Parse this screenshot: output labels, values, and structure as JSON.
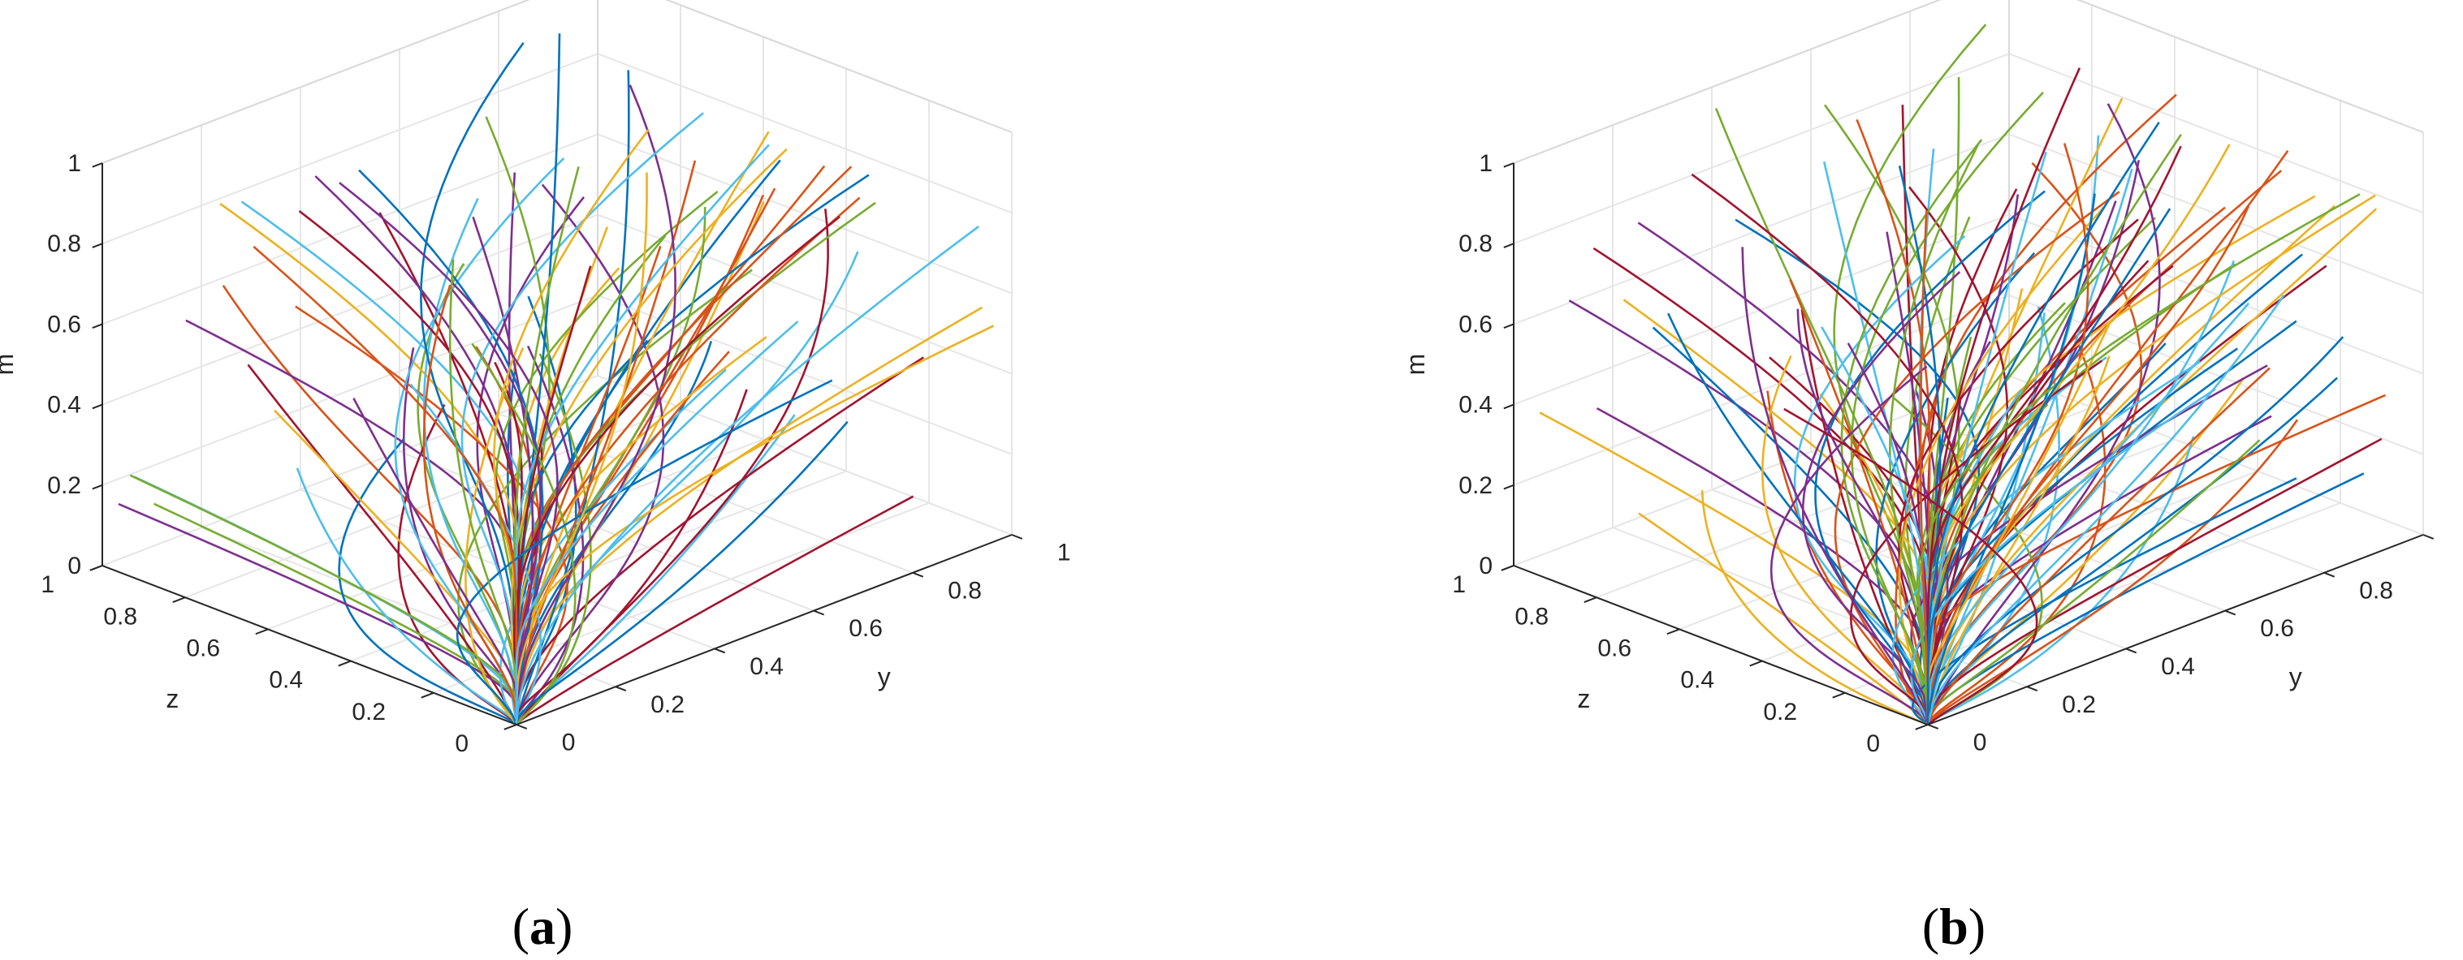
{
  "figure": {
    "panels": [
      {
        "caption_letter": "a",
        "caption_open": "(",
        "caption_close": ")",
        "axes": {
          "x_label": "y",
          "y_label": "z",
          "z_label": "m",
          "x_ticks": [
            "0",
            "0.2",
            "0.4",
            "0.6",
            "0.8",
            "1"
          ],
          "y_ticks": [
            "0",
            "0.2",
            "0.4",
            "0.6",
            "0.8",
            "1"
          ],
          "z_ticks": [
            "0",
            "0.2",
            "0.4",
            "0.6",
            "0.8",
            "1"
          ]
        }
      },
      {
        "caption_letter": "b",
        "caption_open": "(",
        "caption_close": ")",
        "axes": {
          "x_label": "y",
          "y_label": "z",
          "z_label": "m",
          "x_ticks": [
            "0",
            "0.2",
            "0.4",
            "0.6",
            "0.8",
            "1"
          ],
          "y_ticks": [
            "0",
            "0.2",
            "0.4",
            "0.6",
            "0.8",
            "1"
          ],
          "z_ticks": [
            "0",
            "0.2",
            "0.4",
            "0.6",
            "0.8",
            "1"
          ]
        }
      }
    ]
  },
  "chart_data": [
    {
      "type": "line",
      "projection": "3d",
      "panel": "a",
      "xlabel": "y",
      "ylabel": "z",
      "zlabel": "m",
      "xlim": [
        0,
        1
      ],
      "ylim": [
        0,
        1
      ],
      "zlim": [
        0,
        1
      ],
      "grid": true,
      "series_description_count": 90,
      "trajectory_model": "each trajectory ends at the origin (y=0, z=0, m=0) and begins at a point on the boundary of the unit cube (y=1 face, z=1 face, or m=1 top)",
      "colors": [
        "#0072BD",
        "#D95319",
        "#EDB120",
        "#7E2F8E",
        "#77AC30",
        "#4DBEEE",
        "#A2142F"
      ],
      "random_seed": 17
    },
    {
      "type": "line",
      "projection": "3d",
      "panel": "b",
      "xlabel": "y",
      "ylabel": "z",
      "zlabel": "m",
      "xlim": [
        0,
        1
      ],
      "ylim": [
        0,
        1
      ],
      "zlim": [
        0,
        1
      ],
      "grid": true,
      "series_description_count": 120,
      "trajectory_model": "each trajectory ends at the origin (y=0, z=0, m=0) and begins at a point on the boundary of the unit cube (y=1 face, z=1 face, or m=1 top)",
      "colors": [
        "#0072BD",
        "#D95319",
        "#EDB120",
        "#7E2F8E",
        "#77AC30",
        "#4DBEEE",
        "#A2142F"
      ],
      "random_seed": 43
    }
  ]
}
